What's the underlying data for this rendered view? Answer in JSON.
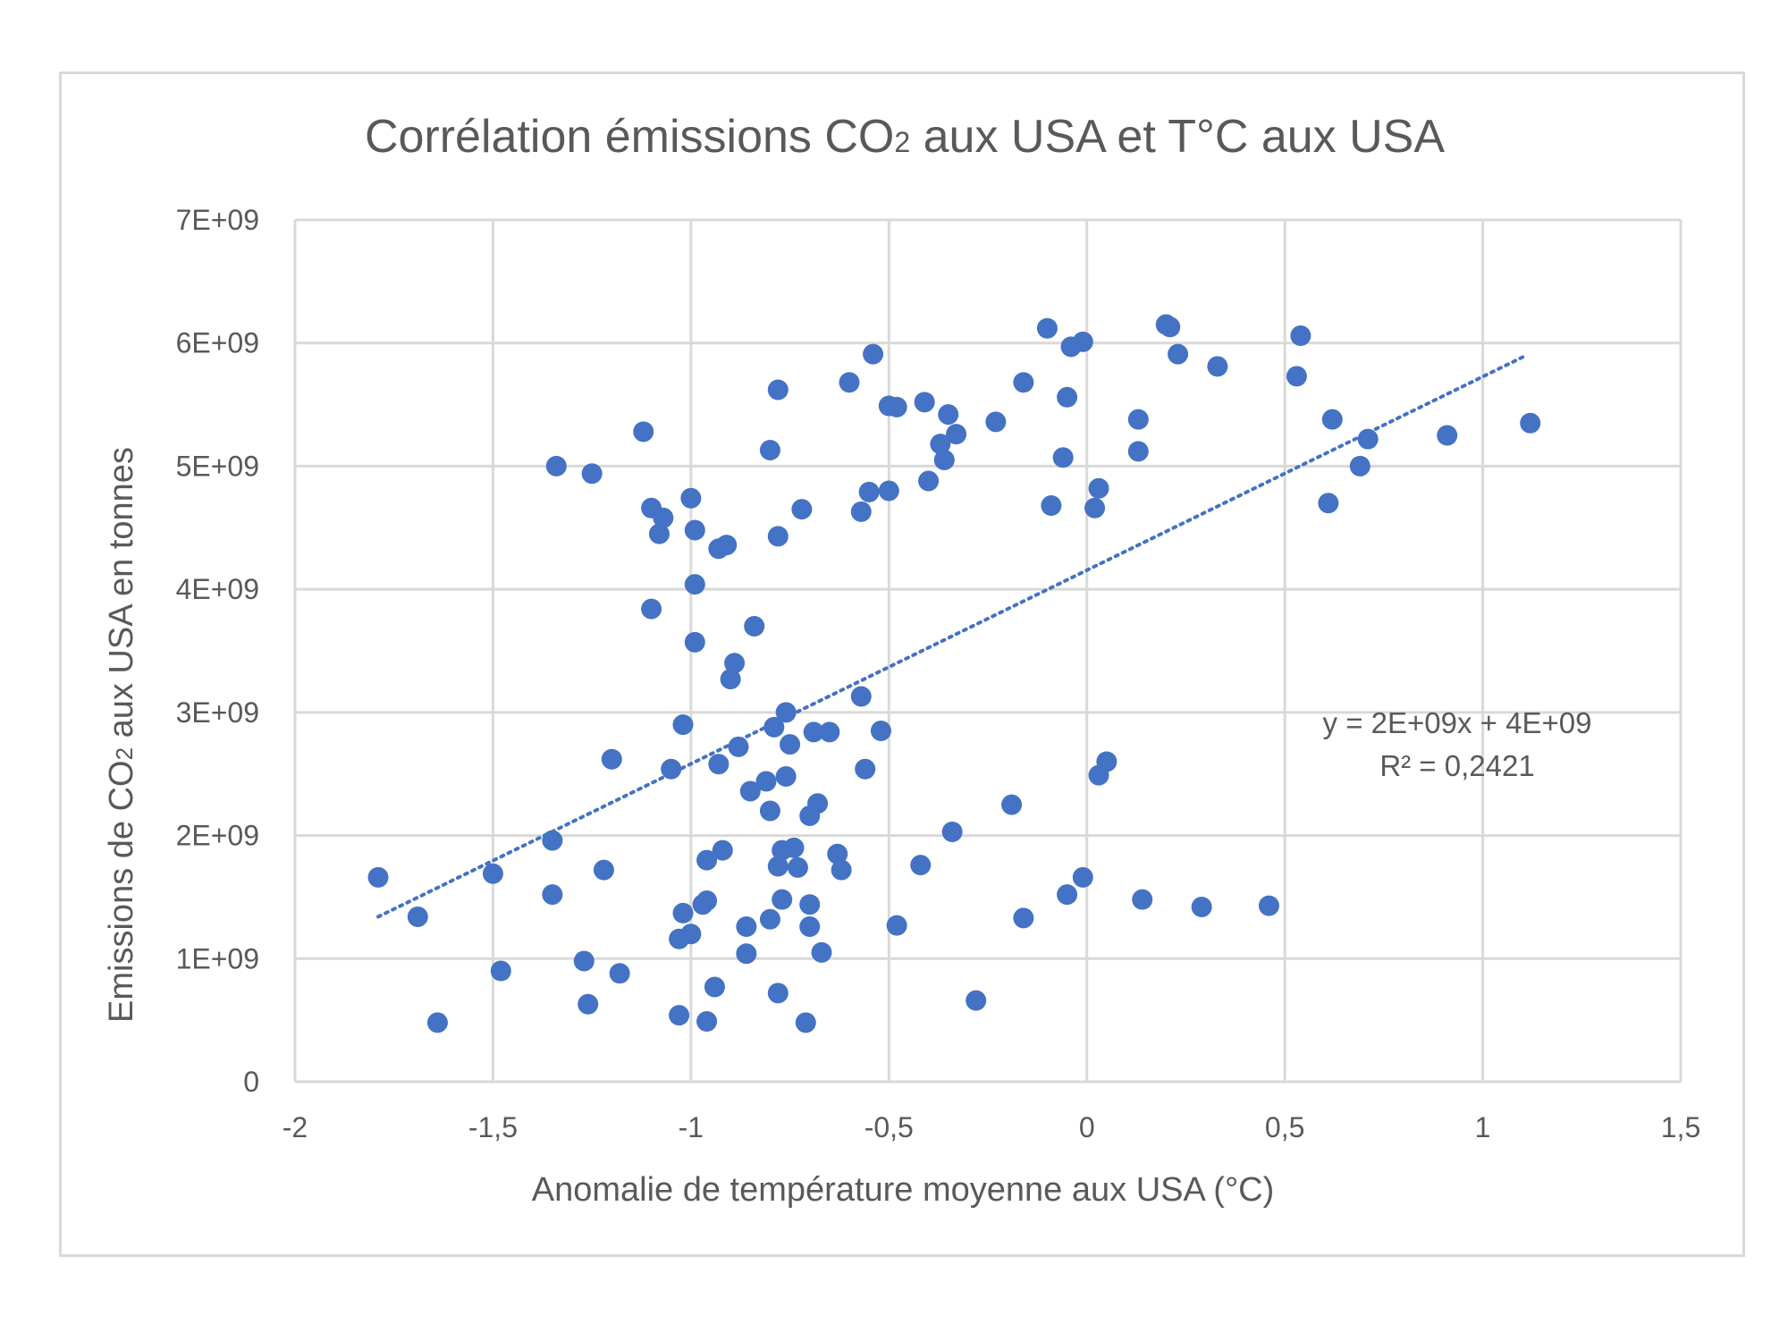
{
  "chart_data": {
    "type": "scatter",
    "title_main": "Corrélation émissions CO",
    "title_sub": "2",
    "title_rest": " aux USA et T°C aux USA",
    "xlabel": "Anomalie de température moyenne aux USA (°C)",
    "ylabel_main": "Emissions de CO",
    "ylabel_sub": "2",
    "ylabel_rest": " aux USA en tonnes",
    "xlim": [
      -2,
      1.5
    ],
    "ylim": [
      0,
      7000000000
    ],
    "x_ticks": [
      -2,
      -1.5,
      -1,
      -0.5,
      0,
      0.5,
      1,
      1.5
    ],
    "x_tick_labels": [
      "-2",
      "-1,5",
      "-1",
      "-0,5",
      "0",
      "0,5",
      "1",
      "1,5"
    ],
    "y_ticks": [
      0,
      1000000000,
      2000000000,
      3000000000,
      4000000000,
      5000000000,
      6000000000,
      7000000000
    ],
    "y_tick_labels": [
      "0",
      "1E+09",
      "2E+09",
      "3E+09",
      "4E+09",
      "5E+09",
      "6E+09",
      "7E+09"
    ],
    "grid": true,
    "marker_color": "#4472c4",
    "trendline": {
      "type": "linear",
      "style": "dotted",
      "color": "#4472c4",
      "from": [
        -1.79,
        1340000000
      ],
      "to": [
        1.11,
        5900000000
      ],
      "equation": "y = 2E+09x + 4E+09",
      "r_squared": "R² = 0,2421"
    },
    "points": [
      [
        -1.79,
        1660000000
      ],
      [
        -1.69,
        1340000000
      ],
      [
        -1.64,
        480000000
      ],
      [
        -1.5,
        1690000000
      ],
      [
        -1.48,
        900000000
      ],
      [
        -1.35,
        1960000000
      ],
      [
        -1.35,
        1520000000
      ],
      [
        -1.34,
        5000000000
      ],
      [
        -1.27,
        980000000
      ],
      [
        -1.26,
        630000000
      ],
      [
        -1.25,
        4940000000
      ],
      [
        -1.22,
        1720000000
      ],
      [
        -1.2,
        2620000000
      ],
      [
        -1.18,
        880000000
      ],
      [
        -1.12,
        5280000000
      ],
      [
        -1.1,
        4660000000
      ],
      [
        -1.1,
        3840000000
      ],
      [
        -1.08,
        4450000000
      ],
      [
        -1.07,
        4580000000
      ],
      [
        -1.05,
        2540000000
      ],
      [
        -1.03,
        540000000
      ],
      [
        -1.03,
        1160000000
      ],
      [
        -1.02,
        1370000000
      ],
      [
        -1.02,
        2900000000
      ],
      [
        -1.0,
        4740000000
      ],
      [
        -1.0,
        1200000000
      ],
      [
        -0.99,
        3570000000
      ],
      [
        -0.99,
        4040000000
      ],
      [
        -0.99,
        4480000000
      ],
      [
        -0.97,
        1440000000
      ],
      [
        -0.96,
        1800000000
      ],
      [
        -0.96,
        1470000000
      ],
      [
        -0.96,
        490000000
      ],
      [
        -0.94,
        770000000
      ],
      [
        -0.93,
        2580000000
      ],
      [
        -0.93,
        4330000000
      ],
      [
        -0.92,
        1880000000
      ],
      [
        -0.91,
        4360000000
      ],
      [
        -0.9,
        3270000000
      ],
      [
        -0.89,
        3400000000
      ],
      [
        -0.88,
        2720000000
      ],
      [
        -0.86,
        1040000000
      ],
      [
        -0.86,
        1260000000
      ],
      [
        -0.85,
        2360000000
      ],
      [
        -0.84,
        3700000000
      ],
      [
        -0.81,
        2440000000
      ],
      [
        -0.8,
        5130000000
      ],
      [
        -0.8,
        2200000000
      ],
      [
        -0.8,
        1320000000
      ],
      [
        -0.79,
        2880000000
      ],
      [
        -0.78,
        1750000000
      ],
      [
        -0.78,
        720000000
      ],
      [
        -0.78,
        4430000000
      ],
      [
        -0.78,
        5620000000
      ],
      [
        -0.77,
        1880000000
      ],
      [
        -0.77,
        1480000000
      ],
      [
        -0.76,
        2480000000
      ],
      [
        -0.76,
        3000000000
      ],
      [
        -0.75,
        2740000000
      ],
      [
        -0.74,
        1900000000
      ],
      [
        -0.73,
        1740000000
      ],
      [
        -0.72,
        4650000000
      ],
      [
        -0.71,
        480000000
      ],
      [
        -0.7,
        2160000000
      ],
      [
        -0.7,
        1440000000
      ],
      [
        -0.7,
        1260000000
      ],
      [
        -0.69,
        2840000000
      ],
      [
        -0.68,
        2260000000
      ],
      [
        -0.67,
        1050000000
      ],
      [
        -0.65,
        2840000000
      ],
      [
        -0.63,
        1850000000
      ],
      [
        -0.62,
        1720000000
      ],
      [
        -0.6,
        5680000000
      ],
      [
        -0.57,
        4630000000
      ],
      [
        -0.57,
        3130000000
      ],
      [
        -0.56,
        2540000000
      ],
      [
        -0.55,
        4790000000
      ],
      [
        -0.54,
        5910000000
      ],
      [
        -0.52,
        2850000000
      ],
      [
        -0.5,
        5490000000
      ],
      [
        -0.5,
        4800000000
      ],
      [
        -0.48,
        5480000000
      ],
      [
        -0.48,
        1270000000
      ],
      [
        -0.42,
        1760000000
      ],
      [
        -0.41,
        5520000000
      ],
      [
        -0.4,
        4880000000
      ],
      [
        -0.37,
        5180000000
      ],
      [
        -0.36,
        5050000000
      ],
      [
        -0.35,
        5420000000
      ],
      [
        -0.34,
        2030000000
      ],
      [
        -0.33,
        5260000000
      ],
      [
        -0.28,
        660000000
      ],
      [
        -0.23,
        5360000000
      ],
      [
        -0.19,
        2250000000
      ],
      [
        -0.16,
        5680000000
      ],
      [
        -0.16,
        1330000000
      ],
      [
        -0.1,
        6120000000
      ],
      [
        -0.09,
        4680000000
      ],
      [
        -0.06,
        5070000000
      ],
      [
        -0.05,
        5560000000
      ],
      [
        -0.05,
        1520000000
      ],
      [
        -0.04,
        5970000000
      ],
      [
        -0.01,
        6010000000
      ],
      [
        -0.01,
        1660000000
      ],
      [
        0.02,
        4660000000
      ],
      [
        0.03,
        2490000000
      ],
      [
        0.03,
        4820000000
      ],
      [
        0.05,
        2600000000
      ],
      [
        0.13,
        5380000000
      ],
      [
        0.13,
        5120000000
      ],
      [
        0.14,
        1480000000
      ],
      [
        0.2,
        6150000000
      ],
      [
        0.21,
        6130000000
      ],
      [
        0.23,
        5910000000
      ],
      [
        0.29,
        1420000000
      ],
      [
        0.33,
        5810000000
      ],
      [
        0.46,
        1430000000
      ],
      [
        0.53,
        5730000000
      ],
      [
        0.54,
        6060000000
      ],
      [
        0.61,
        4700000000
      ],
      [
        0.62,
        5380000000
      ],
      [
        0.69,
        5000000000
      ],
      [
        0.71,
        5220000000
      ],
      [
        0.91,
        5250000000
      ],
      [
        1.12,
        5350000000
      ]
    ]
  }
}
